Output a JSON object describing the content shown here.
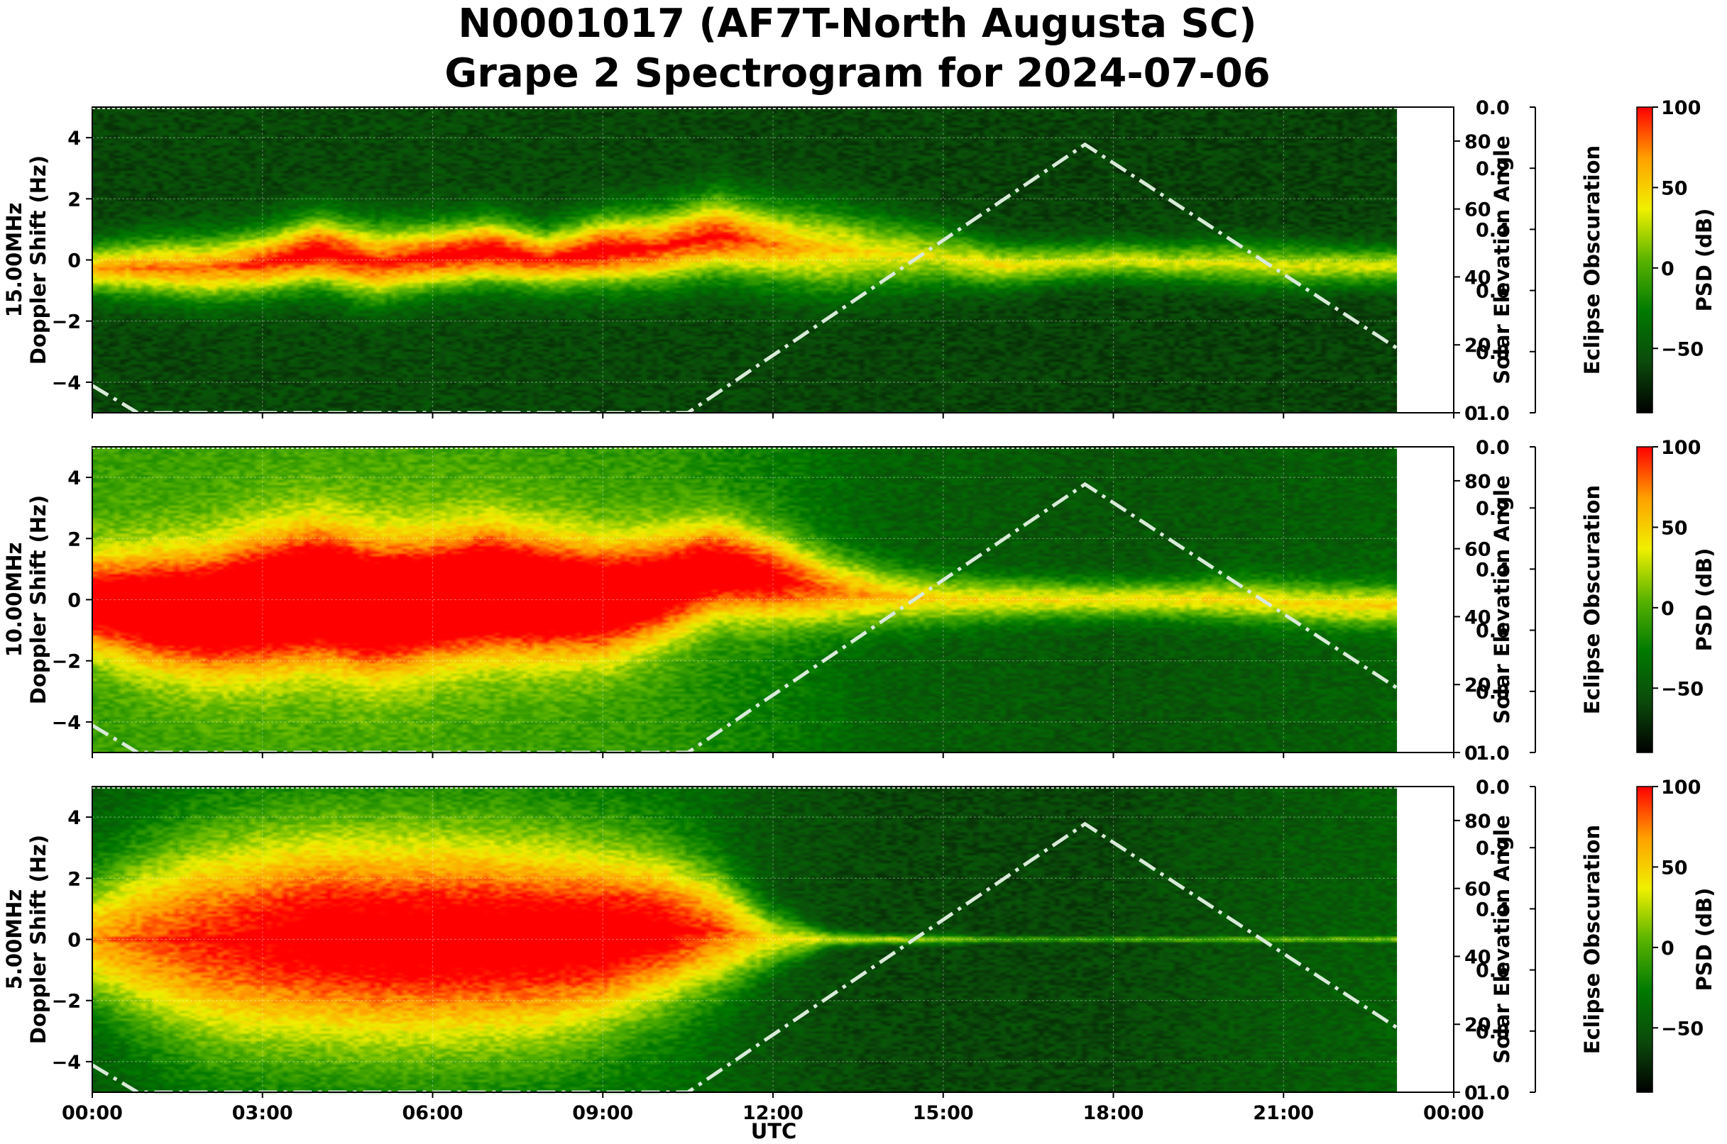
{
  "title_line1": "N0001017 (AF7T-North Augusta SC)",
  "title_line2": "Grape 2 Spectrogram for 2024-07-06",
  "chart_data": {
    "type": "heatmap",
    "title": "N0001017 (AF7T-North Augusta SC) Grape 2 Spectrogram for 2024-07-06",
    "xlabel": "UTC",
    "x_ticks": [
      "00:00",
      "03:00",
      "06:00",
      "09:00",
      "12:00",
      "15:00",
      "18:00",
      "21:00",
      "00:00"
    ],
    "xlim_hours": [
      0,
      24
    ],
    "data_end_hour": 23.0,
    "ylabel": "Doppler Shift (Hz)",
    "ylim": [
      -5,
      5
    ],
    "y_ticks": [
      "4",
      "2",
      "0",
      "−2",
      "−4"
    ],
    "y_tick_values": [
      4,
      2,
      0,
      -2,
      -4
    ],
    "secondary_y": {
      "label": "Solar Elevation Angle",
      "ylim": [
        0,
        90
      ],
      "ticks": [
        "0",
        "20",
        "40",
        "60",
        "80"
      ],
      "tick_values": [
        0,
        20,
        40,
        60,
        80
      ]
    },
    "eclipse_axis": {
      "label": "Eclipse Obscuration",
      "ylim": [
        0.0,
        1.0
      ],
      "inverted": true,
      "ticks": [
        "0.0",
        "0.2",
        "0.4",
        "0.6",
        "0.8",
        "1.0"
      ],
      "tick_values": [
        0.0,
        0.2,
        0.4,
        0.6,
        0.8,
        1.0
      ]
    },
    "colorbar": {
      "label": "PSD (dB)",
      "range": [
        -90,
        100
      ],
      "ticks": [
        "100",
        "50",
        "0",
        "−50"
      ],
      "tick_values": [
        100,
        50,
        0,
        -50
      ],
      "colors": [
        "#000000",
        "#0b4a0b",
        "#007a00",
        "#5ab400",
        "#f0f000",
        "#ffa000",
        "#ff0000"
      ]
    },
    "solar_elevation": {
      "hours": [
        0,
        0.8,
        10.5,
        17.5,
        23.0
      ],
      "degrees": [
        8,
        0,
        0,
        79,
        19
      ]
    },
    "panels": [
      {
        "name": "15.00MHz",
        "freq_label": "15.00MHz",
        "trace": {
          "hours": [
            0,
            1,
            2,
            3,
            4,
            5,
            6,
            7,
            8,
            9,
            10,
            11,
            12,
            13,
            14,
            15,
            16,
            17,
            18,
            19,
            20,
            21,
            22,
            23
          ],
          "doppler": [
            -0.3,
            -0.25,
            -0.3,
            -0.1,
            0.3,
            -0.1,
            0.1,
            0.3,
            0.0,
            0.3,
            0.4,
            0.8,
            0.5,
            0.3,
            0.2,
            0.1,
            -0.2,
            -0.1,
            0.0,
            -0.1,
            -0.1,
            -0.2,
            -0.2,
            -0.2
          ],
          "intensity": [
            0.6,
            0.65,
            0.65,
            0.75,
            0.85,
            0.75,
            0.8,
            0.85,
            0.75,
            0.85,
            0.75,
            0.8,
            0.65,
            0.55,
            0.5,
            0.45,
            0.5,
            0.45,
            0.45,
            0.45,
            0.45,
            0.45,
            0.45,
            0.45
          ],
          "spread": [
            1.0,
            1.2,
            1.3,
            1.3,
            1.4,
            1.5,
            1.3,
            1.3,
            1.2,
            1.4,
            1.5,
            1.6,
            1.6,
            1.7,
            1.4,
            1.2,
            0.9,
            0.8,
            0.8,
            0.8,
            0.9,
            0.9,
            0.8,
            0.8
          ]
        },
        "background": {
          "hours": [
            0,
            6,
            12,
            18,
            23
          ],
          "level": [
            0.16,
            0.17,
            0.16,
            0.15,
            0.15
          ]
        }
      },
      {
        "name": "10.00MHz",
        "freq_label": "10.00MHz",
        "trace": {
          "hours": [
            0,
            1,
            2,
            3,
            4,
            5,
            6,
            7,
            8,
            9,
            10,
            11,
            12,
            13,
            14,
            15,
            16,
            17,
            18,
            19,
            20,
            21,
            22,
            23
          ],
          "doppler": [
            -0.1,
            -0.3,
            -0.4,
            -0.1,
            0.2,
            -0.2,
            0.0,
            0.3,
            0.1,
            0.0,
            0.4,
            1.0,
            0.7,
            0.3,
            0.1,
            0.0,
            0.0,
            0.0,
            0.0,
            0.0,
            0.0,
            -0.1,
            -0.2,
            -0.2
          ],
          "intensity": [
            0.7,
            0.75,
            0.8,
            0.85,
            0.9,
            0.85,
            0.85,
            0.9,
            0.85,
            0.8,
            0.75,
            0.75,
            0.7,
            0.55,
            0.5,
            0.45,
            0.45,
            0.45,
            0.45,
            0.45,
            0.45,
            0.45,
            0.45,
            0.45
          ],
          "spread": [
            2.0,
            2.4,
            2.6,
            2.8,
            2.8,
            2.8,
            2.6,
            2.6,
            2.5,
            2.4,
            2.2,
            2.0,
            1.8,
            1.5,
            1.2,
            1.0,
            0.9,
            0.8,
            0.8,
            0.8,
            0.9,
            0.9,
            0.9,
            0.9
          ]
        },
        "background": {
          "hours": [
            0,
            6,
            10,
            12,
            14,
            18,
            23
          ],
          "level": [
            0.44,
            0.46,
            0.42,
            0.34,
            0.24,
            0.2,
            0.24
          ]
        }
      },
      {
        "name": "5.00MHz",
        "freq_label": "5.00MHz",
        "trace": {
          "hours": [
            0,
            1,
            2,
            3,
            4,
            5,
            6,
            7,
            8,
            9,
            10,
            11,
            12,
            13,
            14,
            15,
            16,
            17,
            18,
            19,
            20,
            21,
            22,
            23
          ],
          "doppler": [
            0.0,
            0.0,
            0.0,
            0.0,
            0.1,
            0.0,
            0.0,
            0.0,
            0.0,
            0.1,
            0.3,
            0.3,
            0.0,
            0.0,
            0.0,
            0.0,
            0.0,
            0.0,
            0.0,
            0.0,
            0.0,
            0.0,
            0.0,
            0.0
          ],
          "intensity": [
            0.55,
            0.65,
            0.7,
            0.75,
            0.8,
            0.8,
            0.8,
            0.8,
            0.8,
            0.8,
            0.75,
            0.65,
            0.45,
            0.4,
            0.4,
            0.35,
            0.3,
            0.3,
            0.3,
            0.3,
            0.3,
            0.3,
            0.3,
            0.3
          ],
          "spread": [
            2.5,
            3.5,
            4.2,
            4.4,
            4.4,
            4.4,
            4.3,
            4.2,
            4.0,
            3.6,
            3.0,
            2.4,
            1.2,
            0.3,
            0.2,
            0.2,
            0.1,
            0.1,
            0.1,
            0.1,
            0.1,
            0.1,
            0.1,
            0.1
          ]
        },
        "background": {
          "hours": [
            0,
            6,
            10,
            12,
            14,
            18,
            20,
            23
          ],
          "level": [
            0.24,
            0.3,
            0.3,
            0.2,
            0.16,
            0.16,
            0.2,
            0.24
          ]
        }
      }
    ]
  }
}
